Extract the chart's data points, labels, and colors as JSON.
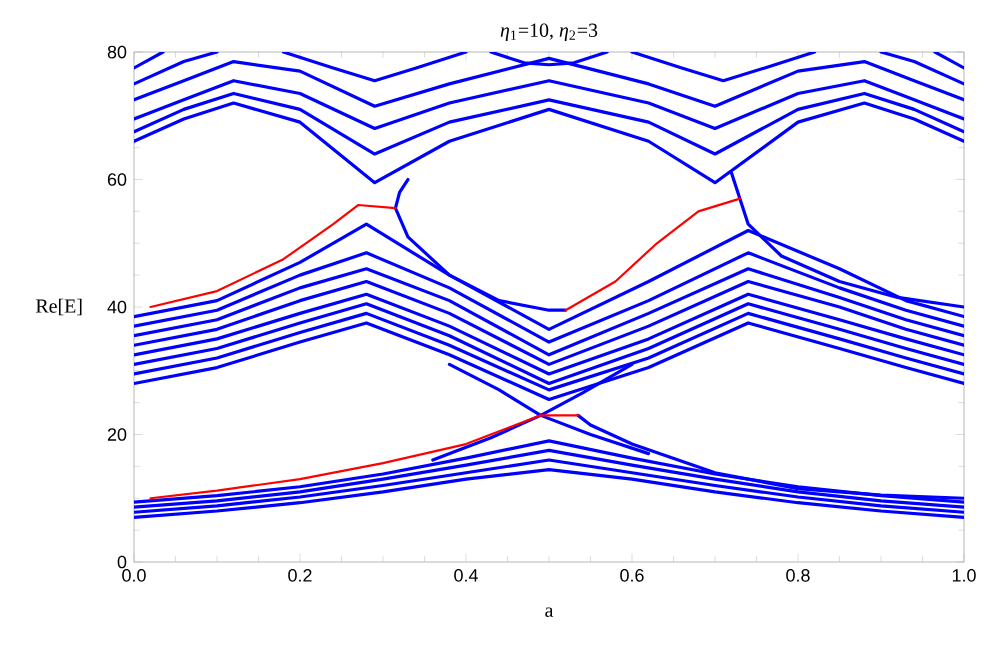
{
  "chart_data": {
    "type": "line",
    "title": "*η*$_{1}$=10, *η*$_{2}$=3",
    "xlabel": "a",
    "ylabel": "Re[E]",
    "xlim": [
      0,
      1
    ],
    "ylim": [
      0,
      80
    ],
    "xticks": [
      {
        "value": 0,
        "label": "0.0"
      },
      0.2,
      0.4,
      0.6,
      0.8,
      {
        "value": 1,
        "label": "1.0"
      }
    ],
    "yticks": [
      0,
      20,
      40,
      60,
      80
    ],
    "grid": false,
    "line_style": "solid",
    "series": [
      {
        "color": "#0000ff",
        "x": [
          0,
          0.1,
          0.2,
          0.3,
          0.4,
          0.5,
          0.6,
          0.7,
          0.8,
          0.9,
          1
        ],
        "values": [
          7,
          8,
          9.3,
          11,
          13,
          14.5,
          13,
          11,
          9.3,
          8,
          7
        ]
      },
      {
        "color": "#0000ff",
        "x": [
          0,
          0.1,
          0.2,
          0.3,
          0.4,
          0.5,
          0.6,
          0.7,
          0.8,
          0.9,
          1
        ],
        "values": [
          7.8,
          8.8,
          10.2,
          12,
          14,
          16,
          14,
          12,
          10.2,
          8.8,
          7.8
        ]
      },
      {
        "color": "#0000ff",
        "x": [
          0,
          0.1,
          0.2,
          0.3,
          0.4,
          0.5,
          0.6,
          0.7,
          0.8,
          0.9,
          1
        ],
        "values": [
          8.6,
          9.6,
          11,
          13,
          15.2,
          17.5,
          15.2,
          13,
          11,
          9.6,
          8.6
        ]
      },
      {
        "color": "#0000ff",
        "x": [
          0,
          0.1,
          0.2,
          0.3,
          0.4,
          0.5,
          0.6,
          0.7,
          0.8,
          0.9,
          1
        ],
        "values": [
          9.4,
          10.4,
          11.8,
          13.8,
          16.3,
          19,
          16.3,
          13.8,
          11.8,
          10.4,
          9.4
        ]
      },
      {
        "color": "#0000ff",
        "x": [
          0.38,
          0.44,
          0.49,
          0.55,
          0.62
        ],
        "values": [
          31,
          27,
          23,
          20,
          17
        ]
      },
      {
        "color": "#0000ff",
        "x": [
          0.36,
          0.43,
          0.49,
          0.54,
          0.6
        ],
        "values": [
          16,
          19.5,
          23,
          26.5,
          31
        ]
      },
      {
        "color": "#0000ff",
        "x": [
          0.535,
          0.55,
          0.6,
          0.7,
          0.8,
          0.9,
          1
        ],
        "values": [
          23,
          21.5,
          18.5,
          14,
          11.5,
          10.5,
          10
        ]
      },
      {
        "color": "#0000ff",
        "x": [
          0,
          0.1,
          0.2,
          0.28,
          0.38,
          0.5,
          0.62,
          0.74,
          0.85,
          0.93,
          1
        ],
        "values": [
          38.5,
          41,
          47,
          53,
          45,
          36.5,
          44,
          52,
          46,
          41,
          38.5
        ]
      },
      {
        "color": "#0000ff",
        "x": [
          0,
          0.1,
          0.2,
          0.28,
          0.38,
          0.5,
          0.62,
          0.74,
          0.85,
          0.93,
          1
        ],
        "values": [
          37,
          39.5,
          45,
          48.5,
          43,
          34.5,
          41,
          48.5,
          43,
          39.5,
          37
        ]
      },
      {
        "color": "#0000ff",
        "x": [
          0,
          0.1,
          0.2,
          0.28,
          0.38,
          0.5,
          0.62,
          0.74,
          0.85,
          0.93,
          1
        ],
        "values": [
          35.5,
          38,
          43,
          46,
          41,
          32.5,
          39,
          46,
          41.5,
          38,
          35.5
        ]
      },
      {
        "color": "#0000ff",
        "x": [
          0,
          0.1,
          0.2,
          0.28,
          0.38,
          0.5,
          0.62,
          0.74,
          0.85,
          0.93,
          1
        ],
        "values": [
          34,
          36.5,
          41,
          44,
          39,
          31,
          37,
          44,
          40,
          36.5,
          34
        ]
      },
      {
        "color": "#0000ff",
        "x": [
          0,
          0.1,
          0.2,
          0.28,
          0.38,
          0.5,
          0.62,
          0.74,
          0.85,
          0.93,
          1
        ],
        "values": [
          32.5,
          35,
          39,
          42,
          37,
          29.5,
          35,
          42,
          38,
          35,
          32.5
        ]
      },
      {
        "color": "#0000ff",
        "x": [
          0,
          0.1,
          0.2,
          0.28,
          0.38,
          0.5,
          0.62,
          0.74,
          0.85,
          0.93,
          1
        ],
        "values": [
          31,
          33.5,
          37.5,
          40.5,
          35.5,
          28,
          33.5,
          40.5,
          36.5,
          33.5,
          31
        ]
      },
      {
        "color": "#0000ff",
        "x": [
          0,
          0.1,
          0.2,
          0.28,
          0.38,
          0.5,
          0.62,
          0.74,
          0.85,
          0.93,
          1
        ],
        "values": [
          29.5,
          32,
          36,
          39,
          34,
          27,
          32,
          39,
          35,
          32,
          29.5
        ]
      },
      {
        "color": "#0000ff",
        "x": [
          0,
          0.1,
          0.2,
          0.28,
          0.38,
          0.5,
          0.62,
          0.74,
          0.85,
          0.93,
          1
        ],
        "values": [
          28,
          30.5,
          34.5,
          37.5,
          32.5,
          25.5,
          30.5,
          37.5,
          33.5,
          30.5,
          28
        ]
      },
      {
        "color": "#0000ff",
        "x": [
          0.33,
          0.32,
          0.315,
          0.33,
          0.38,
          0.44,
          0.5,
          0.52
        ],
        "values": [
          60,
          58,
          55.5,
          51,
          45,
          41,
          39.5,
          39.5
        ]
      },
      {
        "color": "#0000ff",
        "x": [
          0.72,
          0.725,
          0.73,
          0.74,
          0.78,
          0.85,
          0.92,
          1
        ],
        "values": [
          61,
          59,
          57,
          53,
          48,
          44,
          41.5,
          40
        ]
      },
      {
        "color": "#0000ff",
        "x": [
          0,
          0.06,
          0.12,
          0.2,
          0.29,
          0.38,
          0.5,
          0.62,
          0.7,
          0.8,
          0.88,
          0.94,
          1
        ],
        "values": [
          66,
          69.5,
          72,
          69,
          59.5,
          66,
          71,
          66,
          59.5,
          69,
          72,
          69.5,
          66
        ]
      },
      {
        "color": "#0000ff",
        "x": [
          0,
          0.06,
          0.12,
          0.2,
          0.29,
          0.38,
          0.5,
          0.62,
          0.7,
          0.8,
          0.88,
          0.94,
          1
        ],
        "values": [
          67.5,
          71,
          73.5,
          71,
          64,
          69,
          72.5,
          69,
          64,
          71,
          73.5,
          71,
          67.5
        ]
      },
      {
        "color": "#0000ff",
        "x": [
          0,
          0.06,
          0.12,
          0.2,
          0.29,
          0.38,
          0.5,
          0.62,
          0.7,
          0.8,
          0.88,
          0.94,
          1
        ],
        "values": [
          69.5,
          72.5,
          75.5,
          73.5,
          68,
          72,
          75.5,
          72,
          68,
          73.5,
          75.5,
          72.5,
          69.5
        ]
      },
      {
        "color": "#0000ff",
        "x": [
          0,
          0.06,
          0.12,
          0.2,
          0.29,
          0.38,
          0.5,
          0.62,
          0.7,
          0.8,
          0.88,
          0.94,
          1
        ],
        "values": [
          72.5,
          75.5,
          78.5,
          77,
          71.5,
          75,
          79,
          75,
          71.5,
          77,
          78.5,
          75.5,
          72.5
        ]
      },
      {
        "color": "#0000ff",
        "x": [
          0,
          0.06,
          0.1
        ],
        "values": [
          75,
          78.5,
          80
        ]
      },
      {
        "color": "#0000ff",
        "x": [
          0.18,
          0.24,
          0.29,
          0.34,
          0.4
        ],
        "values": [
          80,
          77.5,
          75.5,
          77.5,
          80
        ]
      },
      {
        "color": "#0000ff",
        "x": [
          0.6,
          0.66,
          0.71,
          0.76,
          0.82
        ],
        "values": [
          80,
          77.5,
          75.5,
          77.5,
          80
        ]
      },
      {
        "color": "#0000ff",
        "x": [
          0.9,
          0.94,
          1
        ],
        "values": [
          80,
          78.5,
          75
        ]
      },
      {
        "color": "#0000ff",
        "x": [
          0,
          0.035
        ],
        "values": [
          77.5,
          80
        ]
      },
      {
        "color": "#0000ff",
        "x": [
          0.965,
          1
        ],
        "values": [
          80,
          77.5
        ]
      },
      {
        "color": "#0000ff",
        "x": [
          0.43,
          0.47,
          0.5,
          0.53,
          0.57
        ],
        "values": [
          80,
          78.3,
          78,
          78.3,
          80
        ]
      },
      {
        "color": "#ff0000",
        "x": [
          0.02,
          0.1,
          0.2,
          0.3,
          0.4,
          0.49,
          0.535
        ],
        "values": [
          10,
          11.2,
          13,
          15.5,
          18.5,
          23,
          23
        ]
      },
      {
        "color": "#ff0000",
        "x": [
          0.02,
          0.1,
          0.18,
          0.24,
          0.27,
          0.315
        ],
        "values": [
          40,
          42.5,
          47.5,
          53,
          56,
          55.5
        ]
      },
      {
        "color": "#ff0000",
        "x": [
          0.52,
          0.58,
          0.63,
          0.68,
          0.73
        ],
        "values": [
          39.5,
          44,
          50,
          55,
          57
        ]
      }
    ]
  }
}
